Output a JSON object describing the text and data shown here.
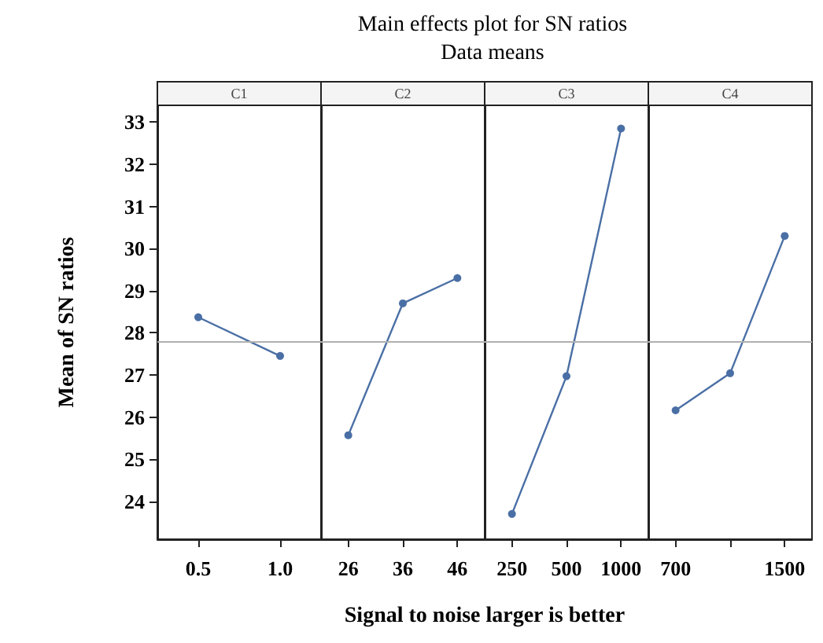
{
  "chart_data": {
    "type": "line",
    "title": "Main effects plot for SN ratios",
    "subtitle": "Data means",
    "xlabel": "Signal to noise larger is better",
    "ylabel": "Mean of SN ratios",
    "categories": [
      "0.5",
      "1.0",
      "26",
      "36",
      "46",
      "250",
      "500",
      "1000",
      "700",
      null,
      "1500"
    ],
    "series": [
      {
        "color": "#4a6fa5",
        "values": [
          28.37,
          27.45,
          null,
          null,
          null,
          null,
          null,
          null,
          null,
          null,
          null
        ]
      },
      {
        "color": "#4a6fa5",
        "values": [
          null,
          null,
          25.57,
          28.7,
          29.3,
          null,
          null,
          null,
          null,
          null,
          null
        ]
      },
      {
        "color": "#4a6fa5",
        "values": [
          null,
          null,
          null,
          null,
          null,
          23.7,
          26.97,
          32.85,
          null,
          null,
          null
        ]
      },
      {
        "color": "#4a6fa5",
        "values": [
          null,
          null,
          null,
          null,
          null,
          null,
          null,
          null,
          26.16,
          27.04,
          30.3
        ]
      }
    ],
    "ylim": [
      23.1,
      33.4
    ],
    "yticks": [
      24,
      25,
      26,
      27,
      28,
      29,
      30,
      31,
      32,
      33
    ],
    "ref_lines": [
      {
        "axis": "y",
        "value": 27.8,
        "color": "#b0b0b0"
      }
    ],
    "marker": "circle",
    "grid": false,
    "annotations": [
      "C1",
      "C2",
      "C3",
      "C4"
    ]
  }
}
